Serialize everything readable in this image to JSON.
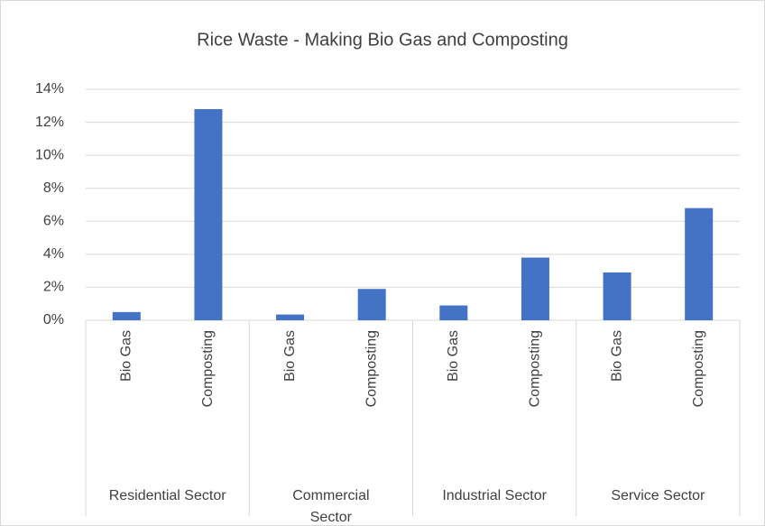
{
  "chart_data": {
    "type": "bar",
    "title": "Rice Waste - Making Bio Gas and Composting",
    "categories": [
      "Bio Gas",
      "Composting",
      "Bio Gas",
      "Composting",
      "Bio Gas",
      "Composting",
      "Bio Gas",
      "Composting"
    ],
    "groups": [
      "Residential Sector",
      "Commercial Sector",
      "Industrial Sector",
      "Service Sector"
    ],
    "values": [
      0.5,
      12.8,
      0.35,
      1.9,
      0.9,
      3.8,
      2.9,
      6.8
    ],
    "color": "#4472c4",
    "ylim": [
      0,
      14
    ],
    "yticks": [
      {
        "value": 0,
        "label": "0%"
      },
      {
        "value": 2,
        "label": "2%"
      },
      {
        "value": 4,
        "label": "4%"
      },
      {
        "value": 6,
        "label": "6%"
      },
      {
        "value": 8,
        "label": "8%"
      },
      {
        "value": 10,
        "label": "10%"
      },
      {
        "value": 12,
        "label": "12%"
      },
      {
        "value": 14,
        "label": "14%"
      }
    ],
    "grid": true
  }
}
